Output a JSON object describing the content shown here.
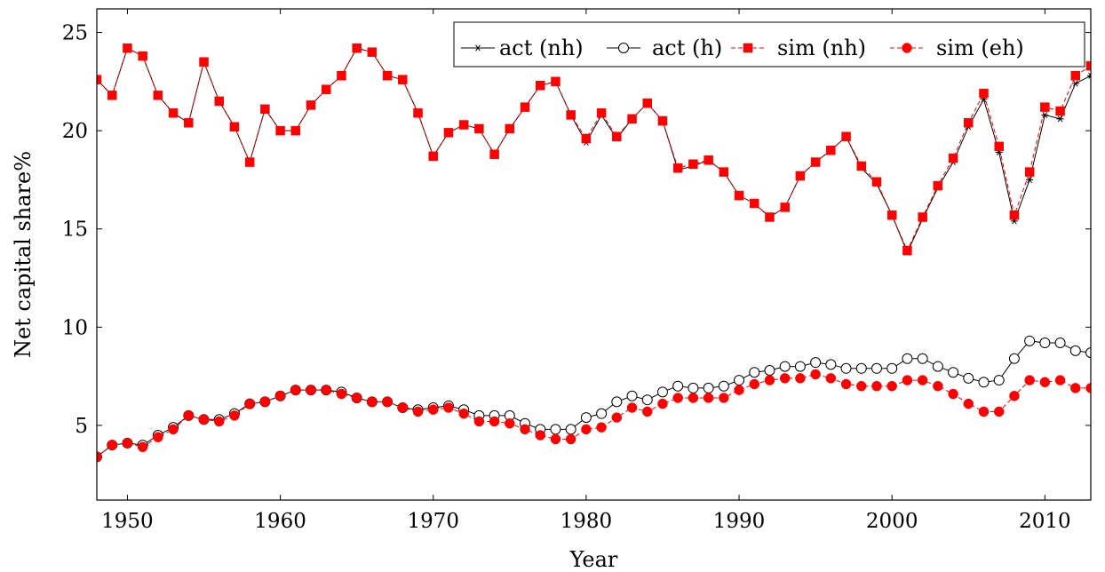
{
  "chart_data": {
    "type": "line",
    "title": "",
    "xlabel": "Year",
    "ylabel": "Net capital share%",
    "xlim": [
      1948,
      2013
    ],
    "ylim": [
      1.2,
      26.2
    ],
    "xticks": [
      1950,
      1960,
      1970,
      1980,
      1990,
      2000,
      2010
    ],
    "yticks": [
      5,
      10,
      15,
      20,
      25
    ],
    "grid": false,
    "legend_position": "top-right",
    "x": [
      1948,
      1949,
      1950,
      1951,
      1952,
      1953,
      1954,
      1955,
      1956,
      1957,
      1958,
      1959,
      1960,
      1961,
      1962,
      1963,
      1964,
      1965,
      1966,
      1967,
      1968,
      1969,
      1970,
      1971,
      1972,
      1973,
      1974,
      1975,
      1976,
      1977,
      1978,
      1979,
      1980,
      1981,
      1982,
      1983,
      1984,
      1985,
      1986,
      1987,
      1988,
      1989,
      1990,
      1991,
      1992,
      1993,
      1994,
      1995,
      1996,
      1997,
      1998,
      1999,
      2000,
      2001,
      2002,
      2003,
      2004,
      2005,
      2006,
      2007,
      2008,
      2009,
      2010,
      2011,
      2012,
      2013
    ],
    "series": [
      {
        "name": "act (nh)",
        "color": "#000000",
        "marker": "star",
        "dashed": false,
        "values": [
          22.6,
          21.8,
          24.2,
          23.8,
          21.8,
          20.9,
          20.4,
          23.5,
          21.5,
          20.2,
          18.4,
          21.1,
          20.0,
          20.0,
          21.3,
          22.1,
          22.8,
          24.2,
          24.0,
          22.8,
          22.6,
          20.9,
          18.7,
          19.9,
          20.3,
          20.1,
          18.8,
          20.1,
          21.2,
          22.3,
          22.5,
          20.8,
          19.4,
          20.8,
          19.6,
          20.6,
          21.4,
          20.5,
          18.0,
          18.2,
          18.5,
          17.9,
          16.7,
          16.3,
          15.6,
          16.1,
          17.7,
          18.4,
          19.0,
          19.7,
          18.1,
          17.3,
          15.7,
          13.8,
          15.5,
          17.1,
          18.4,
          20.2,
          21.6,
          18.9,
          15.4,
          17.5,
          20.8,
          20.6,
          22.4,
          22.8
        ]
      },
      {
        "name": "act (h)",
        "color": "#000000",
        "marker": "circle-open",
        "dashed": false,
        "values": [
          3.4,
          4.0,
          4.1,
          4.0,
          4.5,
          4.9,
          5.5,
          5.3,
          5.3,
          5.6,
          6.1,
          6.2,
          6.5,
          6.8,
          6.8,
          6.8,
          6.7,
          6.4,
          6.2,
          6.2,
          5.9,
          5.8,
          5.9,
          6.0,
          5.8,
          5.5,
          5.5,
          5.5,
          5.1,
          4.8,
          4.8,
          4.8,
          5.4,
          5.6,
          6.2,
          6.5,
          6.3,
          6.7,
          7.0,
          6.9,
          6.9,
          7.0,
          7.3,
          7.7,
          7.8,
          8.0,
          8.0,
          8.2,
          8.1,
          7.9,
          7.9,
          7.9,
          7.9,
          8.4,
          8.4,
          8.0,
          7.7,
          7.4,
          7.2,
          7.3,
          8.4,
          9.3,
          9.2,
          9.2,
          8.8,
          8.7
        ]
      },
      {
        "name": "sim (nh)",
        "color": "#ff0000",
        "marker": "square",
        "dashed": true,
        "values": [
          22.6,
          21.8,
          24.2,
          23.8,
          21.8,
          20.9,
          20.4,
          23.5,
          21.5,
          20.2,
          18.4,
          21.1,
          20.0,
          20.0,
          21.3,
          22.1,
          22.8,
          24.2,
          24.0,
          22.8,
          22.6,
          20.9,
          18.7,
          19.9,
          20.3,
          20.1,
          18.8,
          20.1,
          21.2,
          22.3,
          22.5,
          20.8,
          19.6,
          20.9,
          19.7,
          20.6,
          21.4,
          20.5,
          18.1,
          18.3,
          18.5,
          17.9,
          16.7,
          16.3,
          15.6,
          16.1,
          17.7,
          18.4,
          19.0,
          19.7,
          18.2,
          17.4,
          15.7,
          13.9,
          15.6,
          17.2,
          18.6,
          20.4,
          21.9,
          19.2,
          15.7,
          17.9,
          21.2,
          21.0,
          22.8,
          23.3
        ]
      },
      {
        "name": "sim (eh)",
        "color": "#ff0000",
        "marker": "circle-filled",
        "dashed": true,
        "values": [
          3.4,
          4.0,
          4.1,
          3.9,
          4.4,
          4.8,
          5.5,
          5.3,
          5.2,
          5.5,
          6.1,
          6.2,
          6.5,
          6.8,
          6.8,
          6.8,
          6.6,
          6.4,
          6.2,
          6.2,
          5.9,
          5.7,
          5.8,
          5.9,
          5.6,
          5.2,
          5.2,
          5.1,
          4.8,
          4.5,
          4.3,
          4.3,
          4.8,
          4.9,
          5.4,
          5.9,
          5.7,
          6.1,
          6.4,
          6.4,
          6.4,
          6.4,
          6.8,
          7.1,
          7.3,
          7.4,
          7.4,
          7.6,
          7.4,
          7.1,
          7.0,
          7.0,
          7.0,
          7.3,
          7.3,
          7.0,
          6.6,
          6.1,
          5.7,
          5.7,
          6.5,
          7.3,
          7.2,
          7.3,
          6.9,
          6.9
        ]
      }
    ]
  }
}
